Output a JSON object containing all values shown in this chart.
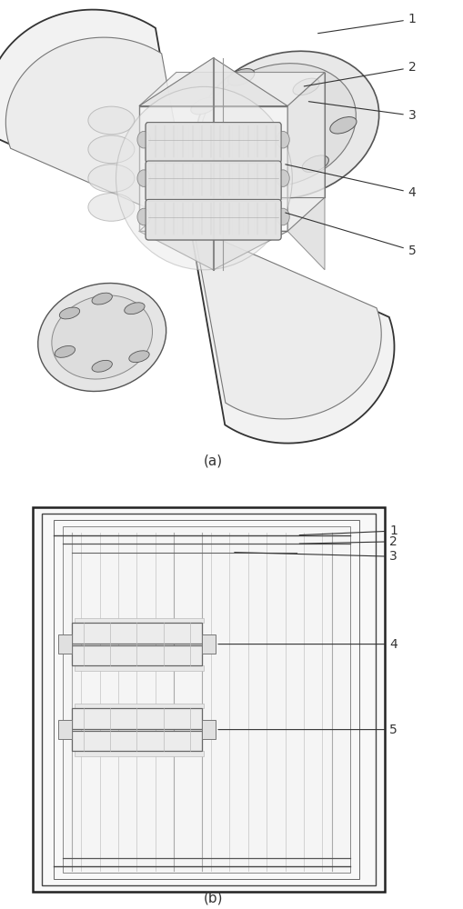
{
  "bg_color": "#ffffff",
  "line_color": "#404040",
  "fig_width": 5.1,
  "fig_height": 10.0,
  "label_a": "(a)",
  "label_b": "(b)"
}
